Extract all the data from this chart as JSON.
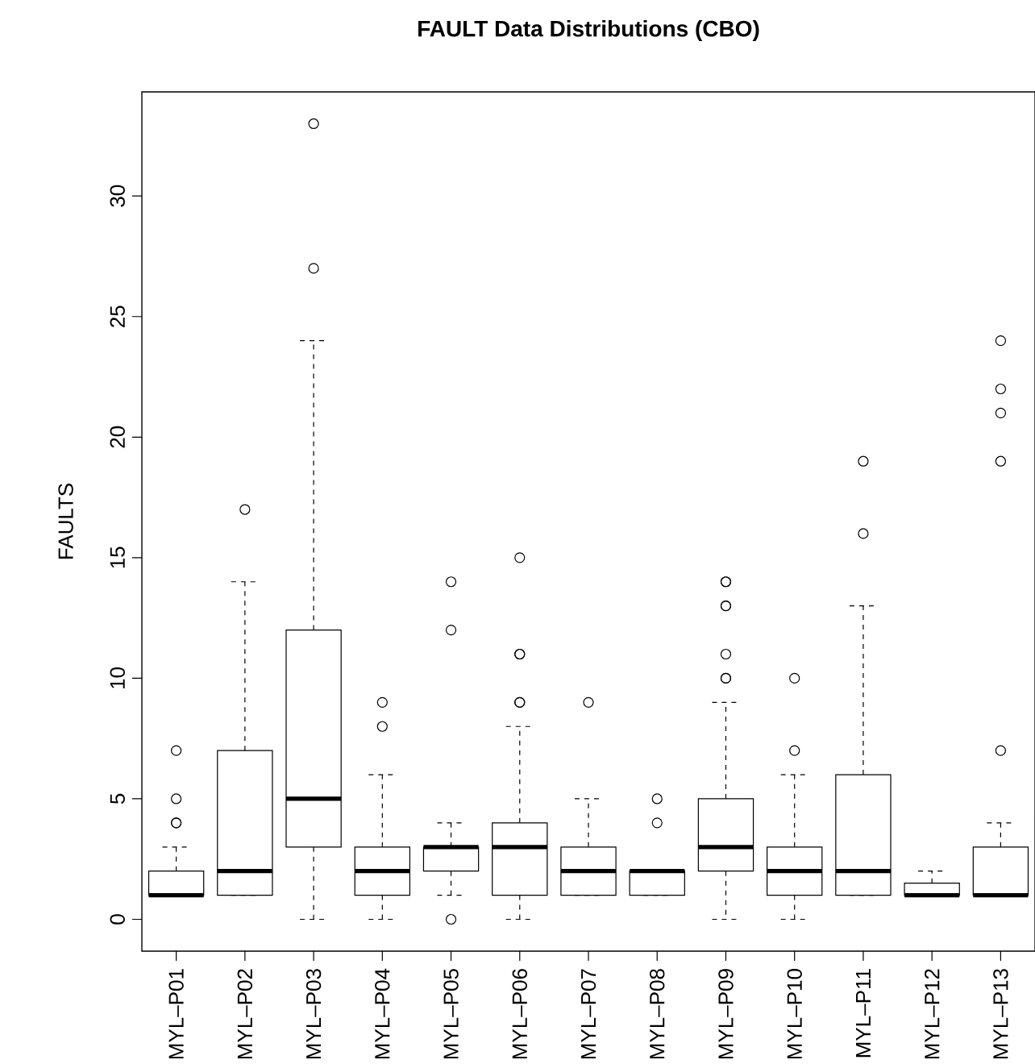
{
  "chart_data": {
    "type": "box",
    "title": "FAULT Data Distributions (CBO)",
    "ylabel": "FAULTS",
    "categories": [
      "MYL–P01",
      "MYL–P02",
      "MYL–P03",
      "MYL–P04",
      "MYL–P05",
      "MYL–P06",
      "MYL–P07",
      "MYL–P08",
      "MYL–P09",
      "MYL–P10",
      "MYL–P11",
      "MYL–P12",
      "MYL–P13"
    ],
    "boxes": [
      {
        "low": 1,
        "q1": 1,
        "median": 1,
        "q3": 2,
        "high": 3,
        "outliers": [
          4,
          4,
          5,
          7
        ]
      },
      {
        "low": 1,
        "q1": 1,
        "median": 2,
        "q3": 7,
        "high": 14,
        "outliers": [
          17
        ]
      },
      {
        "low": 0,
        "q1": 3,
        "median": 5,
        "q3": 12,
        "high": 24,
        "outliers": [
          27,
          33
        ]
      },
      {
        "low": 0,
        "q1": 1,
        "median": 2,
        "q3": 3,
        "high": 6,
        "outliers": [
          8,
          9
        ]
      },
      {
        "low": 1,
        "q1": 2,
        "median": 3,
        "q3": 3,
        "high": 4,
        "outliers": [
          0,
          12,
          14
        ]
      },
      {
        "low": 0,
        "q1": 1,
        "median": 3,
        "q3": 4,
        "high": 8,
        "outliers": [
          9,
          9,
          11,
          11,
          15
        ]
      },
      {
        "low": 1,
        "q1": 1,
        "median": 2,
        "q3": 3,
        "high": 5,
        "outliers": [
          9
        ]
      },
      {
        "low": 1,
        "q1": 1,
        "median": 2,
        "q3": 2,
        "high": 2,
        "outliers": [
          4,
          5
        ]
      },
      {
        "low": 0,
        "q1": 2,
        "median": 3,
        "q3": 5,
        "high": 9,
        "outliers": [
          10,
          10,
          11,
          13,
          13,
          14,
          14
        ]
      },
      {
        "low": 0,
        "q1": 1,
        "median": 2,
        "q3": 3,
        "high": 6,
        "outliers": [
          7,
          10
        ]
      },
      {
        "low": 1,
        "q1": 1,
        "median": 2,
        "q3": 6,
        "high": 13,
        "outliers": [
          16,
          19
        ]
      },
      {
        "low": 1,
        "q1": 1,
        "median": 1,
        "q3": 1.5,
        "high": 2
      },
      {
        "low": 1,
        "q1": 1,
        "median": 1,
        "q3": 3,
        "high": 4,
        "outliers": [
          7,
          19,
          21,
          22,
          24
        ]
      }
    ],
    "color": "#000000",
    "marker": "circle",
    "ylim": [
      -1.32,
      34.32
    ],
    "yticks": [
      0,
      5,
      10,
      15,
      20,
      25,
      30
    ],
    "grid": false
  }
}
